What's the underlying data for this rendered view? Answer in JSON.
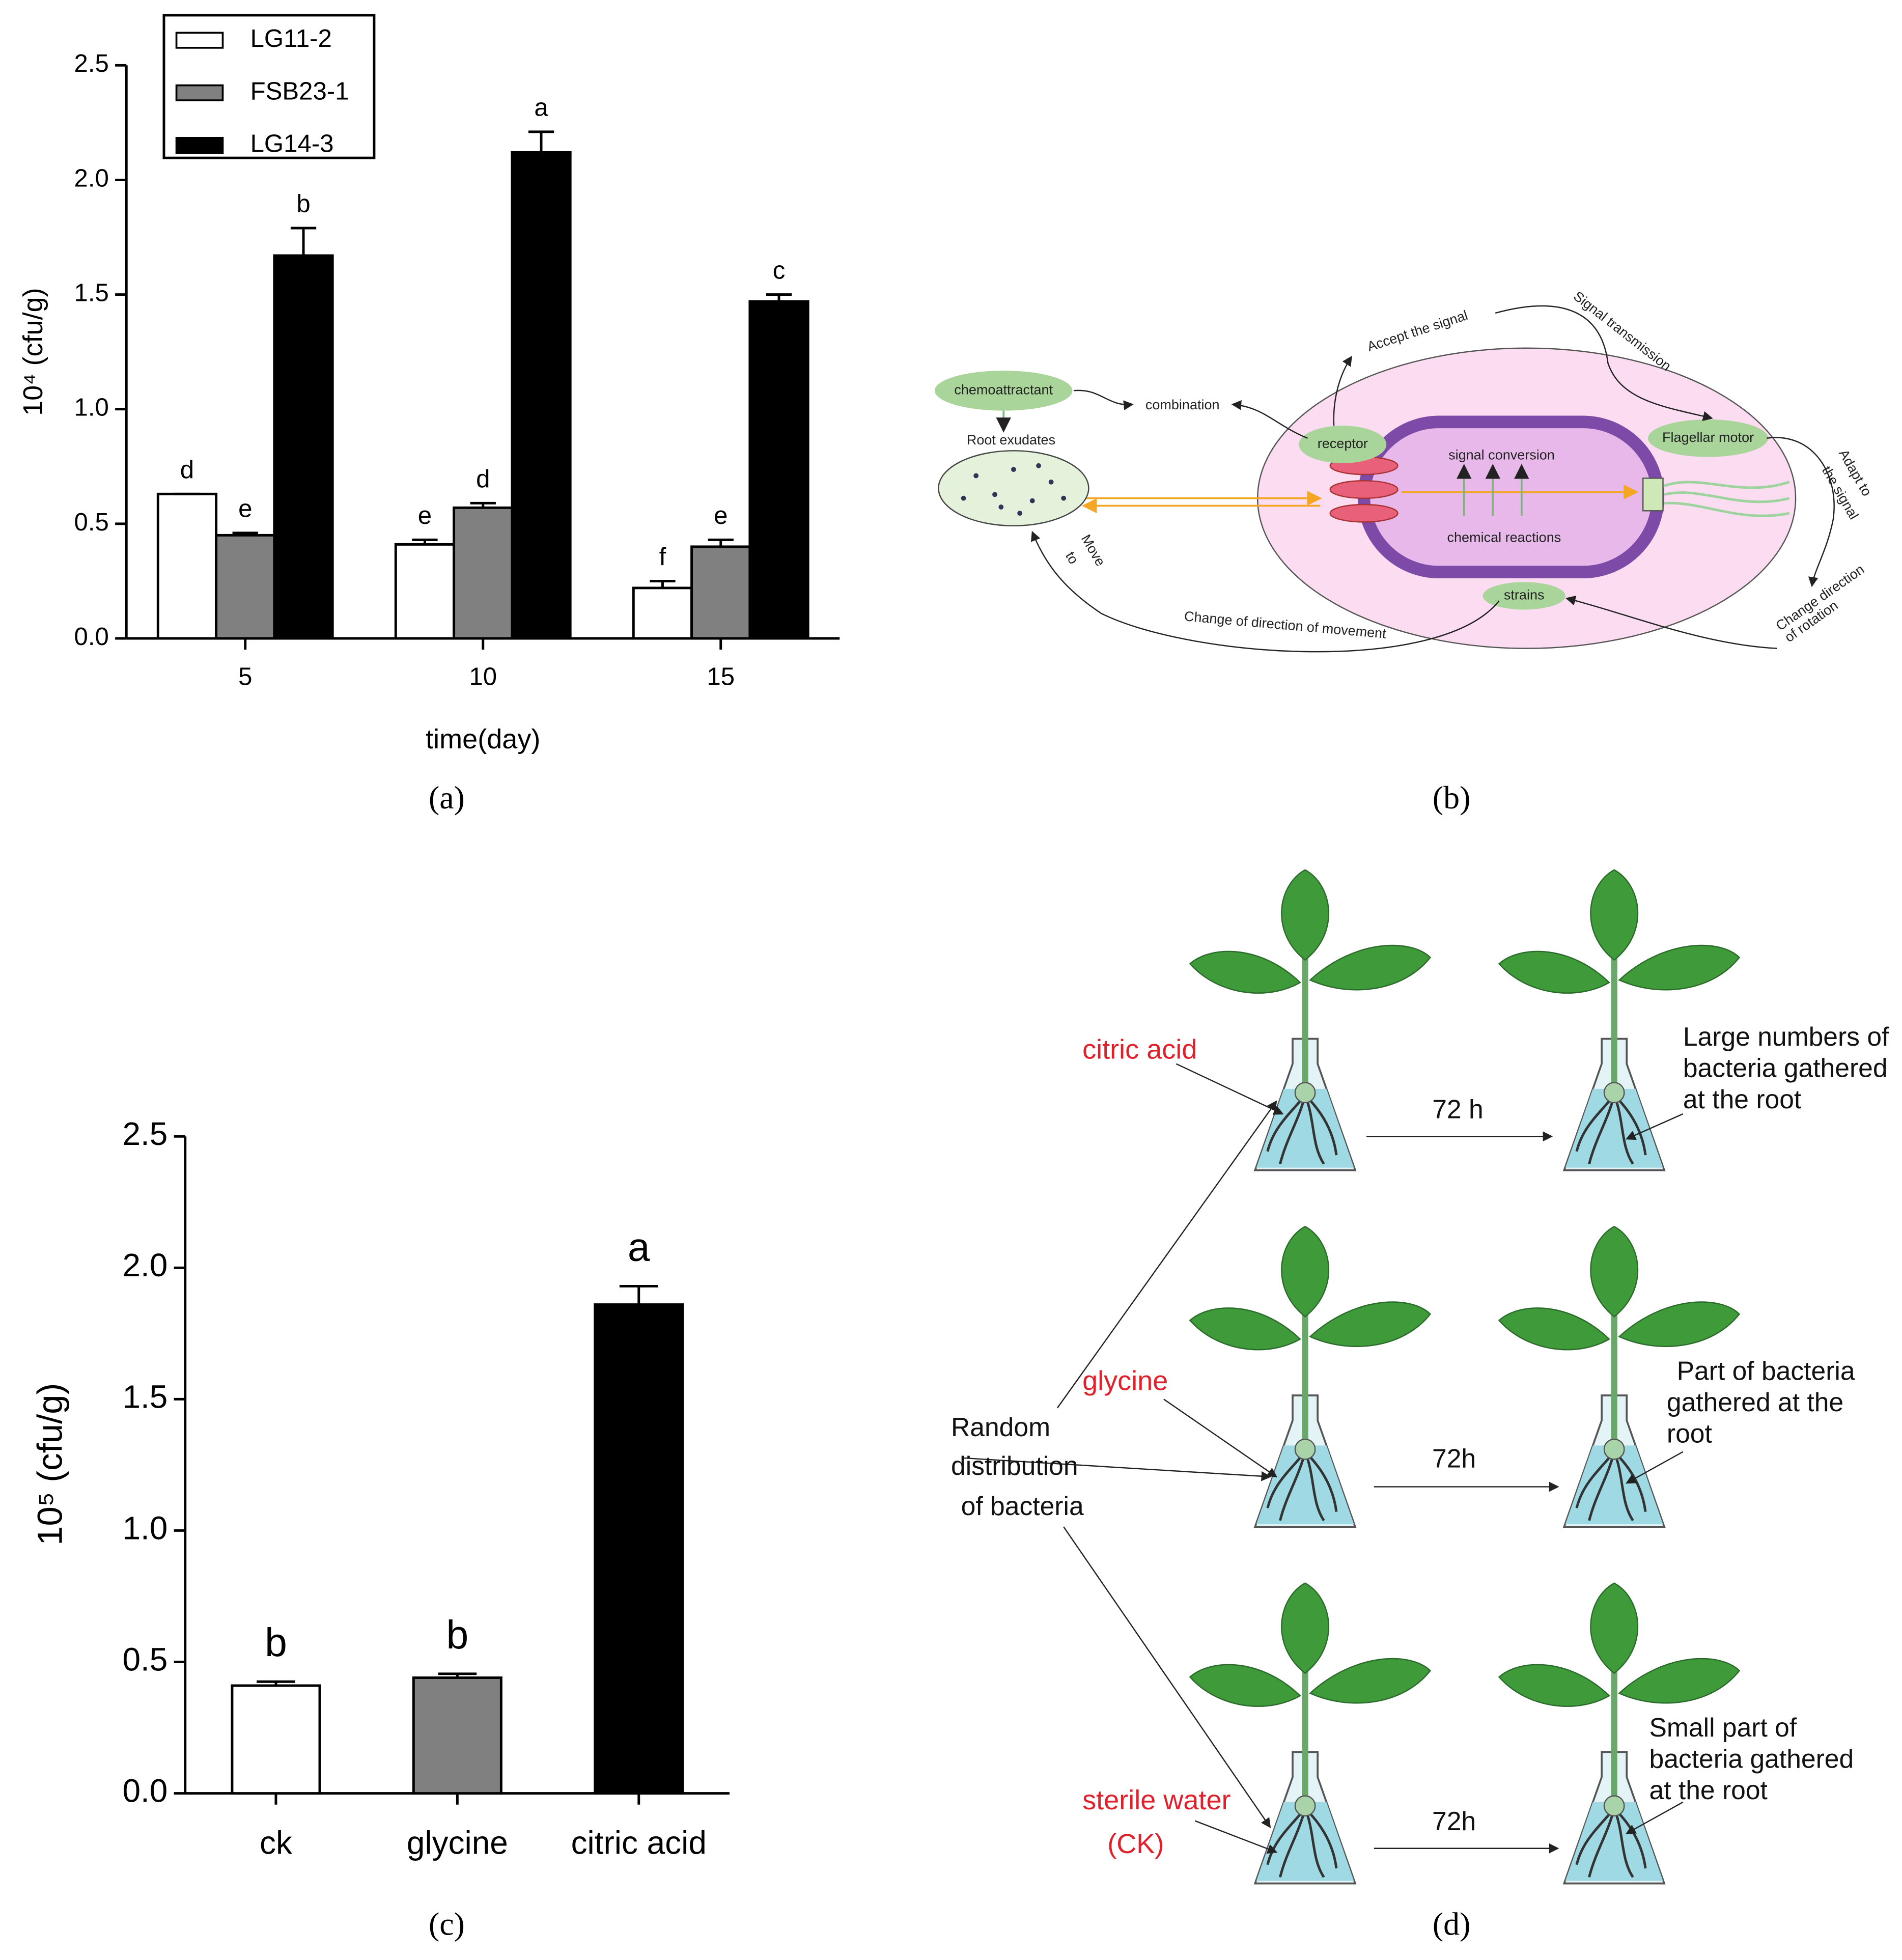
{
  "chart_data": [
    {
      "type": "bar",
      "y_label": "10⁴ (cfu/g)",
      "x_label": "time(day)",
      "categories": [
        "5",
        "10",
        "15"
      ],
      "series": [
        {
          "name": "LG11-2",
          "color": "#ffffff",
          "values": [
            0.63,
            0.41,
            0.22
          ],
          "errors": [
            0,
            0.02,
            0.03
          ],
          "letters": [
            "d",
            "e",
            "f"
          ]
        },
        {
          "name": "FSB23-1",
          "color": "#808080",
          "values": [
            0.45,
            0.57,
            0.4
          ],
          "errors": [
            0.01,
            0.02,
            0.03
          ],
          "letters": [
            "e",
            "d",
            "e"
          ]
        },
        {
          "name": "LG14-3",
          "color": "#000000",
          "values": [
            1.67,
            2.12,
            1.47
          ],
          "errors": [
            0.12,
            0.09,
            0.03
          ],
          "letters": [
            "b",
            "a",
            "c"
          ]
        }
      ],
      "ylim": [
        0,
        2.5
      ],
      "yticks": [
        {
          "value": 0,
          "label": "0.0"
        },
        0.5,
        {
          "value": 1,
          "label": "1.0"
        },
        1.5,
        {
          "value": 2,
          "label": "2.0"
        },
        2.5
      ],
      "legend": "upper left"
    },
    {
      "type": "bar",
      "y_label": "10⁵ (cfu/g)",
      "categories": [
        "ck",
        "glycine",
        "citric acid"
      ],
      "values": [
        0.41,
        0.44,
        1.86
      ],
      "errors": [
        0.015,
        0.015,
        0.07
      ],
      "colors": [
        "#ffffff",
        "#808080",
        "#000000"
      ],
      "letters": [
        "b",
        "b",
        "a"
      ],
      "ylim": [
        0,
        2.5
      ],
      "yticks": [
        {
          "value": 0,
          "label": "0.0"
        },
        0.5,
        {
          "value": 1,
          "label": "1.0"
        },
        1.5,
        {
          "value": 2,
          "label": "2.0"
        },
        2.5
      ]
    }
  ],
  "panel_labels": [
    "(a)",
    "(b)",
    "(c)",
    "(d)"
  ],
  "diagram_b": {
    "chemoattractant": "chemoattractant",
    "root_exudates": "Root exudates",
    "combination": "combination",
    "accept": "Accept the signal",
    "transmission": "Signal transmission",
    "receptor": "receptor",
    "conversion": "signal conversion",
    "reactions": "chemical reactions",
    "motor": "Flagellar motor",
    "adapt": [
      "Adapt to",
      "the signal"
    ],
    "rotation": [
      "Change direction",
      "of rotation"
    ],
    "strains": "strains",
    "movement": "Change of direction of movement",
    "move": [
      "Move",
      "to"
    ]
  },
  "diagram_d": {
    "treatments": [
      "citric acid",
      "glycine",
      "sterile water"
    ],
    "ck": "(CK)",
    "random": [
      "Random",
      "distribution",
      "of bacteria"
    ],
    "times": [
      "72 h",
      "72h",
      "72h"
    ],
    "results": [
      [
        "Large numbers of",
        "bacteria gathered",
        "at the root"
      ],
      [
        "Part of bacteria",
        "gathered at the",
        "root"
      ],
      [
        "Small part of",
        "bacteria gathered",
        "at the root"
      ]
    ]
  }
}
